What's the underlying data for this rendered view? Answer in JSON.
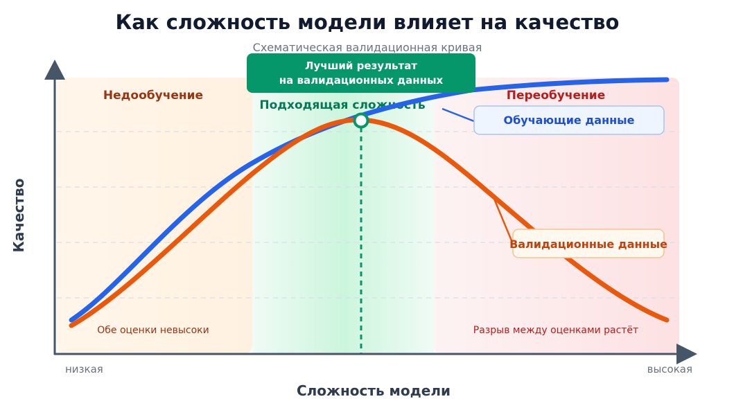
{
  "title": "Как сложность модели влияет на качество",
  "subtitle": "Схематическая валидационная кривая",
  "zones": {
    "underfit": {
      "label": "Недообучение",
      "note": "Обе оценки невысоки",
      "color": "#9a3412"
    },
    "optimal": {
      "label": "Подходящая сложность",
      "color": "#047857"
    },
    "overfit": {
      "label": "Переобучение",
      "note": "Разрыв между оценками растёт",
      "color": "#b91c1c"
    }
  },
  "callout": {
    "line1": "Лучший результат",
    "line2": "на валидационных данных"
  },
  "axes": {
    "x_label": "Сложность модели",
    "x_low": "низкая",
    "x_high": "высокая",
    "y_label": "Качество"
  },
  "series": {
    "train": {
      "label": "Обучающие данные",
      "color": "#2563eb"
    },
    "validation": {
      "label": "Валидационные данные",
      "color": "#ea580c"
    }
  },
  "colors": {
    "axis": "#475569",
    "optimum_marker": "#059669"
  }
}
